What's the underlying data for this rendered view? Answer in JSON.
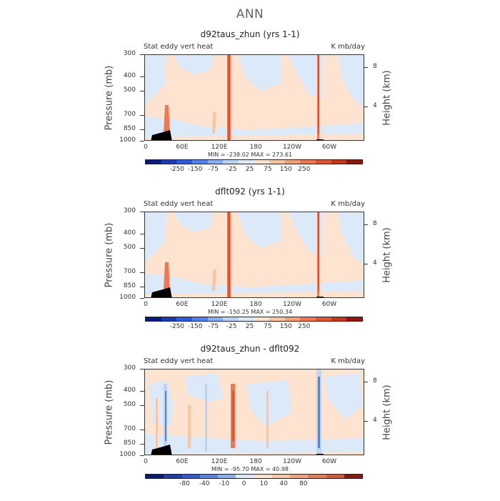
{
  "title": "ANN",
  "colors": {
    "palette": [
      "#0a1a7c",
      "#1a3ab8",
      "#2c5ae0",
      "#5382ec",
      "#8aaef4",
      "#bcd4f8",
      "#dce9f9",
      "#fde3d0",
      "#fbc5a3",
      "#f6a07a",
      "#ef7853",
      "#e0542f",
      "#c4341a",
      "#8e1510"
    ]
  },
  "panels": [
    {
      "title": "d92taus_zhun (yrs 1-1)",
      "left_label": "Stat eddy vert heat",
      "right_label": "K mb/day",
      "ylabel": "Pressure (mb)",
      "ylabel_right": "Height (km)",
      "stats": "MIN = -238.02   MAX = 273.61",
      "colorbar_labels": [
        "-250",
        "-150",
        "-75",
        "-25",
        "25",
        "75",
        "150",
        "250"
      ],
      "variant": "model"
    },
    {
      "title": "dflt092 (yrs 1-1)",
      "left_label": "Stat eddy vert heat",
      "right_label": "K mb/day",
      "ylabel": "Pressure (mb)",
      "ylabel_right": "Height (km)",
      "stats": "MIN = -150.25   MAX = 250.34",
      "colorbar_labels": [
        "-250",
        "-150",
        "-75",
        "-25",
        "25",
        "75",
        "150",
        "250"
      ],
      "variant": "model"
    },
    {
      "title": "d92taus_zhun - dflt092",
      "left_label": "Stat eddy vert heat",
      "right_label": "K mb/day",
      "ylabel": "Pressure (mb)",
      "ylabel_right": "Height (km)",
      "stats": "MIN = -95.70   MAX =  40.98",
      "colorbar_labels": [
        "-80",
        "-40",
        "-10",
        "0",
        "10",
        "40",
        "80"
      ],
      "variant": "diff"
    }
  ],
  "axes": {
    "pressure_ticks": [
      "300",
      "400",
      "500",
      "700",
      "850",
      "1000"
    ],
    "height_ticks": [
      "8",
      "4"
    ],
    "lon_ticks": [
      "0",
      "60E",
      "120E",
      "180",
      "120W",
      "60W"
    ]
  },
  "chart_data": [
    {
      "type": "heatmap",
      "title": "d92taus_zhun (yrs 1-1)",
      "ylabel": "Pressure (mb)",
      "xticks": [
        "0",
        "60E",
        "120E",
        "180",
        "120W",
        "60W"
      ],
      "yticks": [
        300,
        400,
        500,
        700,
        850,
        1000
      ],
      "min": -238.02,
      "max": 273.61,
      "levels": [
        -250,
        -150,
        -75,
        -25,
        25,
        75,
        150,
        250
      ]
    },
    {
      "type": "heatmap",
      "title": "dflt092 (yrs 1-1)",
      "ylabel": "Pressure (mb)",
      "xticks": [
        "0",
        "60E",
        "120E",
        "180",
        "120W",
        "60W"
      ],
      "yticks": [
        300,
        400,
        500,
        700,
        850,
        1000
      ],
      "min": -150.25,
      "max": 250.34,
      "levels": [
        -250,
        -150,
        -75,
        -25,
        25,
        75,
        150,
        250
      ]
    },
    {
      "type": "heatmap",
      "title": "d92taus_zhun - dflt092",
      "ylabel": "Pressure (mb)",
      "xticks": [
        "0",
        "60E",
        "120E",
        "180",
        "120W",
        "60W"
      ],
      "yticks": [
        300,
        400,
        500,
        700,
        850,
        1000
      ],
      "min": -95.7,
      "max": 40.98,
      "levels": [
        -80,
        -40,
        -10,
        0,
        10,
        40,
        80
      ]
    }
  ]
}
